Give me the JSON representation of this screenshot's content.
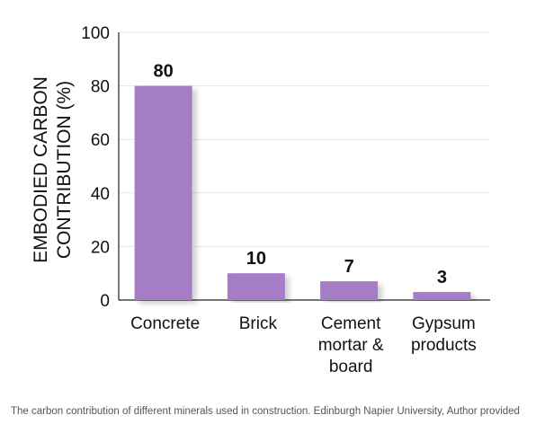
{
  "chart_data": {
    "type": "bar",
    "categories": [
      [
        "Concrete"
      ],
      [
        "Brick"
      ],
      [
        "Cement",
        "mortar &",
        "board"
      ],
      [
        "Gypsum",
        "products"
      ]
    ],
    "values": [
      80,
      10,
      7,
      3
    ],
    "value_labels": [
      "80",
      "10",
      "7",
      "3"
    ],
    "title": "",
    "xlabel": "",
    "ylabel": [
      "EMBODIED CARBON",
      "CONTRIBUTION (%)"
    ],
    "ylim": [
      0,
      100
    ],
    "yticks": [
      0,
      20,
      40,
      60,
      80,
      100
    ],
    "grid": true,
    "colors": {
      "bar": "#a57bc6",
      "bar_shadow": "#d9d9d9",
      "grid": "#e6e6e6",
      "axis": "#222222"
    }
  },
  "caption": "The carbon contribution of different minerals used in construction. Edinburgh Napier University, Author provided"
}
